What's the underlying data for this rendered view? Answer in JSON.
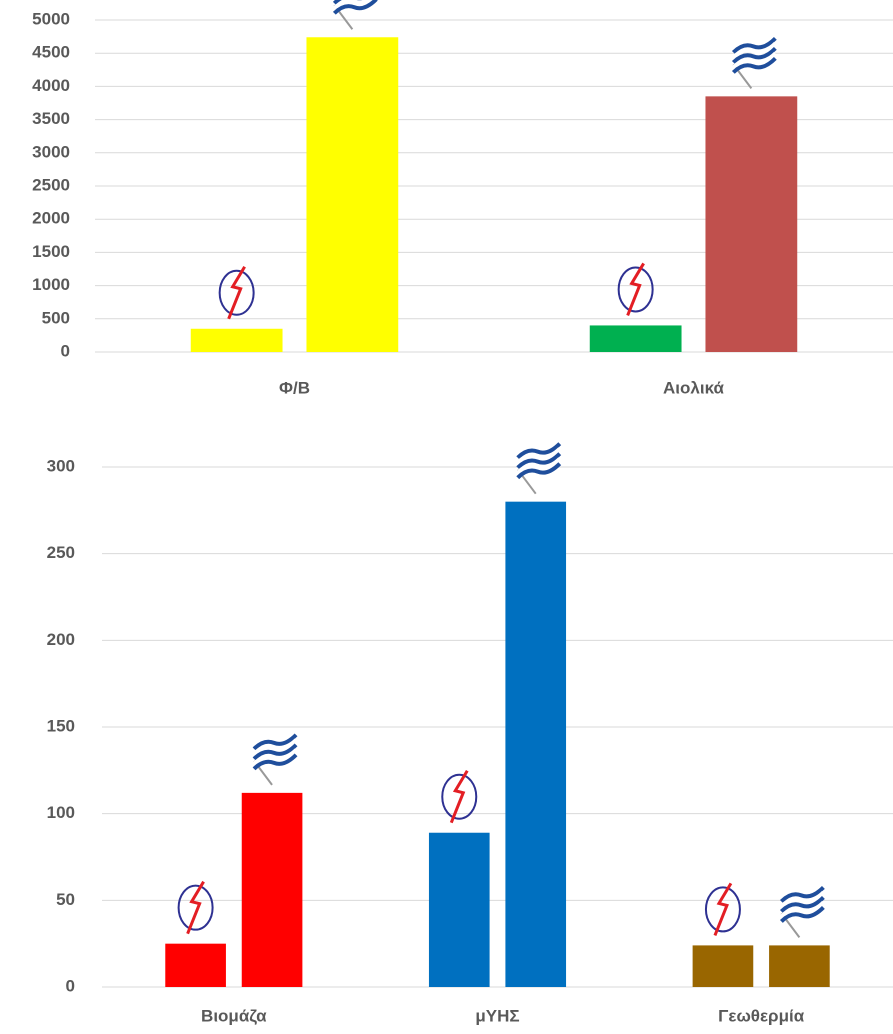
{
  "chart_data": [
    {
      "type": "bar",
      "categories": [
        "Φ/Β",
        "Αιολικά"
      ],
      "series": [
        {
          "values": [
            350,
            400
          ],
          "colors": [
            "#ffff00",
            "#00b050"
          ]
        },
        {
          "values": [
            4740,
            3850
          ],
          "colors": [
            "#ffff00",
            "#c0504d"
          ]
        }
      ],
      "ylim": [
        0,
        5000
      ],
      "yticks": [
        0,
        500,
        1000,
        1500,
        2000,
        2500,
        3000,
        3500,
        4000,
        4500,
        5000
      ],
      "grid": true
    },
    {
      "type": "bar",
      "categories": [
        "Βιομάζα",
        "μΥΗΣ",
        "Γεωθερμία"
      ],
      "series": [
        {
          "values": [
            25,
            89,
            24
          ],
          "colors": [
            "#ff0000",
            "#0070c0",
            "#996600"
          ]
        },
        {
          "values": [
            112,
            280,
            24
          ],
          "colors": [
            "#ff0000",
            "#0070c0",
            "#996600"
          ]
        }
      ],
      "ylim": [
        0,
        300
      ],
      "yticks": [
        0,
        50,
        100,
        150,
        200,
        250,
        300
      ],
      "grid": true
    }
  ]
}
